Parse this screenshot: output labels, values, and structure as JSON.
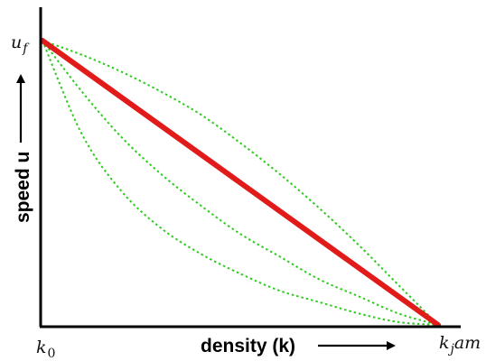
{
  "chart_data": {
    "type": "line",
    "title": "",
    "xlabel": "density (k)",
    "ylabel": "speed u",
    "x_tick_labels": {
      "start": "k_0",
      "end": "k_jam"
    },
    "y_tick_labels": {
      "top": "u_f"
    },
    "xlim": [
      0,
      1
    ],
    "ylim": [
      0,
      1
    ],
    "grid": false,
    "legend": "none",
    "series": [
      {
        "style": "solid",
        "color": "#e11a1a",
        "x": [
          0,
          1
        ],
        "y": [
          1,
          0
        ]
      },
      {
        "style": "dotted",
        "color": "#2ecc1f",
        "x": [
          0,
          0.1,
          0.2,
          0.3,
          0.4,
          0.5,
          0.6,
          0.7,
          0.8,
          0.9,
          1
        ],
        "y": [
          1,
          0.95,
          0.89,
          0.82,
          0.74,
          0.64,
          0.53,
          0.41,
          0.28,
          0.14,
          0
        ]
      },
      {
        "style": "dotted",
        "color": "#2ecc1f",
        "x": [
          0,
          0.1,
          0.2,
          0.3,
          0.4,
          0.5,
          0.6,
          0.7,
          0.8,
          0.9,
          1
        ],
        "y": [
          1,
          0.82,
          0.66,
          0.53,
          0.42,
          0.32,
          0.24,
          0.16,
          0.1,
          0.04,
          0
        ]
      },
      {
        "style": "dotted",
        "color": "#2ecc1f",
        "x": [
          0,
          0.1,
          0.2,
          0.3,
          0.4,
          0.5,
          0.6,
          0.7,
          0.8,
          0.9,
          1
        ],
        "y": [
          1,
          0.67,
          0.47,
          0.34,
          0.25,
          0.18,
          0.12,
          0.08,
          0.04,
          0.01,
          0
        ]
      }
    ]
  }
}
